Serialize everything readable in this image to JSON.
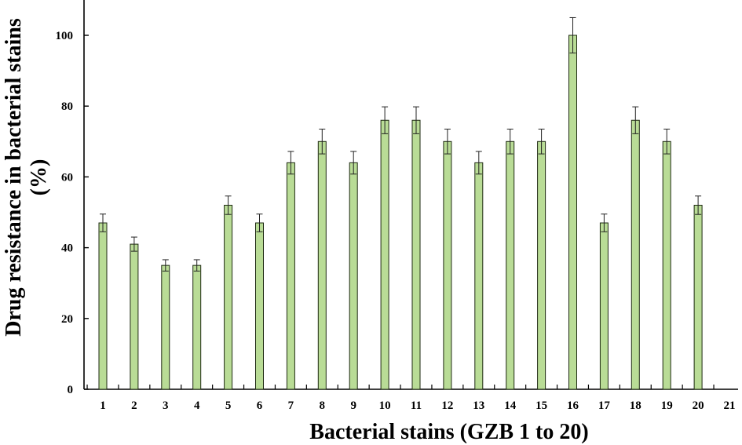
{
  "chart_data": {
    "type": "bar",
    "title": "",
    "xlabel": "Bacterial stains (GZB 1 to 20)",
    "ylabel": [
      "Drug resistance in bacterial stains",
      "(%)"
    ],
    "categories": [
      "1",
      "2",
      "3",
      "4",
      "5",
      "6",
      "7",
      "8",
      "9",
      "10",
      "11",
      "12",
      "13",
      "14",
      "15",
      "16",
      "17",
      "18",
      "19",
      "20"
    ],
    "x_tick_labels": [
      "1",
      "2",
      "3",
      "4",
      "5",
      "6",
      "7",
      "8",
      "9",
      "10",
      "11",
      "12",
      "13",
      "14",
      "15",
      "16",
      "17",
      "18",
      "19",
      "20",
      "21"
    ],
    "values": [
      47,
      41,
      35,
      35,
      52,
      47,
      64,
      70,
      64,
      76,
      76,
      70,
      64,
      70,
      70,
      100,
      47,
      76,
      70,
      52
    ],
    "errors": [
      2.5,
      2,
      1.6,
      1.6,
      2.6,
      2.5,
      3.2,
      3.5,
      3.2,
      3.8,
      3.8,
      3.5,
      3.2,
      3.5,
      3.5,
      5,
      2.5,
      3.8,
      3.5,
      2.6
    ],
    "ylim": [
      0,
      110
    ],
    "yticks": [
      0,
      20,
      40,
      60,
      80,
      100
    ],
    "grid": false,
    "bar_color": "#b9dc96",
    "bar_edge_color": "#1e2a12"
  }
}
